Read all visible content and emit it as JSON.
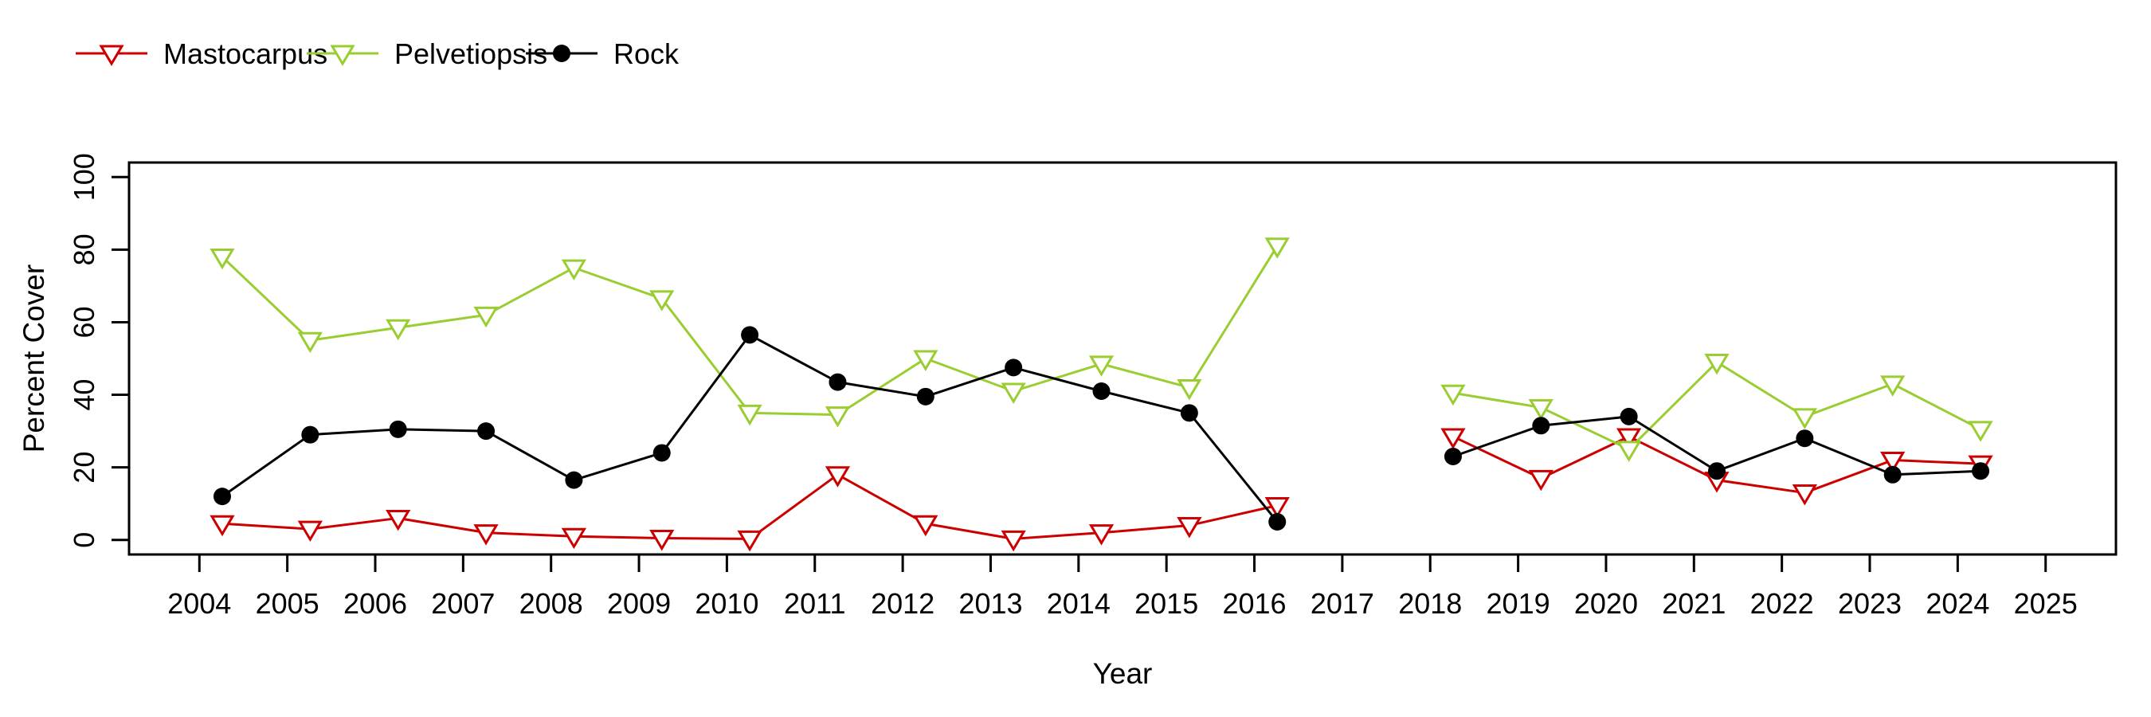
{
  "chart_data": {
    "type": "line",
    "title": "",
    "xlabel": "Year",
    "ylabel": "Percent Cover",
    "x_tick_labels": [
      "2004",
      "2005",
      "2006",
      "2007",
      "2008",
      "2009",
      "2010",
      "2011",
      "2012",
      "2013",
      "2014",
      "2015",
      "2016",
      "2017",
      "2018",
      "2019",
      "2020",
      "2021",
      "2022",
      "2023",
      "2024",
      "2025"
    ],
    "x_ticks": [
      2004,
      2005,
      2006,
      2007,
      2008,
      2009,
      2010,
      2011,
      2012,
      2013,
      2014,
      2015,
      2016,
      2017,
      2018,
      2019,
      2020,
      2021,
      2022,
      2023,
      2024,
      2025
    ],
    "y_tick_labels": [
      "0",
      "20",
      "40",
      "60",
      "80",
      "100"
    ],
    "y_ticks": [
      0,
      20,
      40,
      60,
      80,
      100
    ],
    "xlim": [
      2003.2,
      2025.8
    ],
    "ylim": [
      -4,
      104
    ],
    "grid": false,
    "legend_position": "top-left-above-plot",
    "point_x_offset": 0.26,
    "gap_years": [
      2017
    ],
    "axis_color": "#000000",
    "series": [
      {
        "name": "Mastocarpus",
        "color": "#CC0000",
        "marker": "triangle-down-open",
        "x": [
          2004,
          2005,
          2006,
          2007,
          2008,
          2009,
          2010,
          2011,
          2012,
          2013,
          2014,
          2015,
          2016,
          2018,
          2019,
          2020,
          2021,
          2022,
          2023,
          2024
        ],
        "values": [
          4.5,
          3,
          6,
          2,
          1,
          0.5,
          0.3,
          18,
          4.5,
          0.3,
          2,
          4,
          9.5,
          28.5,
          17,
          28.5,
          16.5,
          13,
          22,
          21
        ]
      },
      {
        "name": "Pelvetiopsis",
        "color": "#9ACD32",
        "marker": "triangle-down-open",
        "x": [
          2004,
          2005,
          2006,
          2007,
          2008,
          2009,
          2010,
          2011,
          2012,
          2013,
          2014,
          2015,
          2016,
          2018,
          2019,
          2020,
          2021,
          2022,
          2023,
          2024
        ],
        "values": [
          78,
          55,
          58.5,
          62,
          75,
          66.5,
          35,
          34.5,
          50,
          41,
          48.5,
          42,
          81,
          40.5,
          36.5,
          25,
          49,
          34,
          43,
          30.5
        ]
      },
      {
        "name": "Rock",
        "color": "#000000",
        "marker": "circle-filled",
        "x": [
          2004,
          2005,
          2006,
          2007,
          2008,
          2009,
          2010,
          2011,
          2012,
          2013,
          2014,
          2015,
          2016,
          2018,
          2019,
          2020,
          2021,
          2022,
          2023,
          2024
        ],
        "values": [
          12,
          29,
          30.5,
          30,
          16.5,
          24,
          56.5,
          43.5,
          39.5,
          47.5,
          41,
          35,
          5,
          23,
          31.5,
          34,
          19,
          28,
          18,
          19
        ]
      }
    ]
  }
}
